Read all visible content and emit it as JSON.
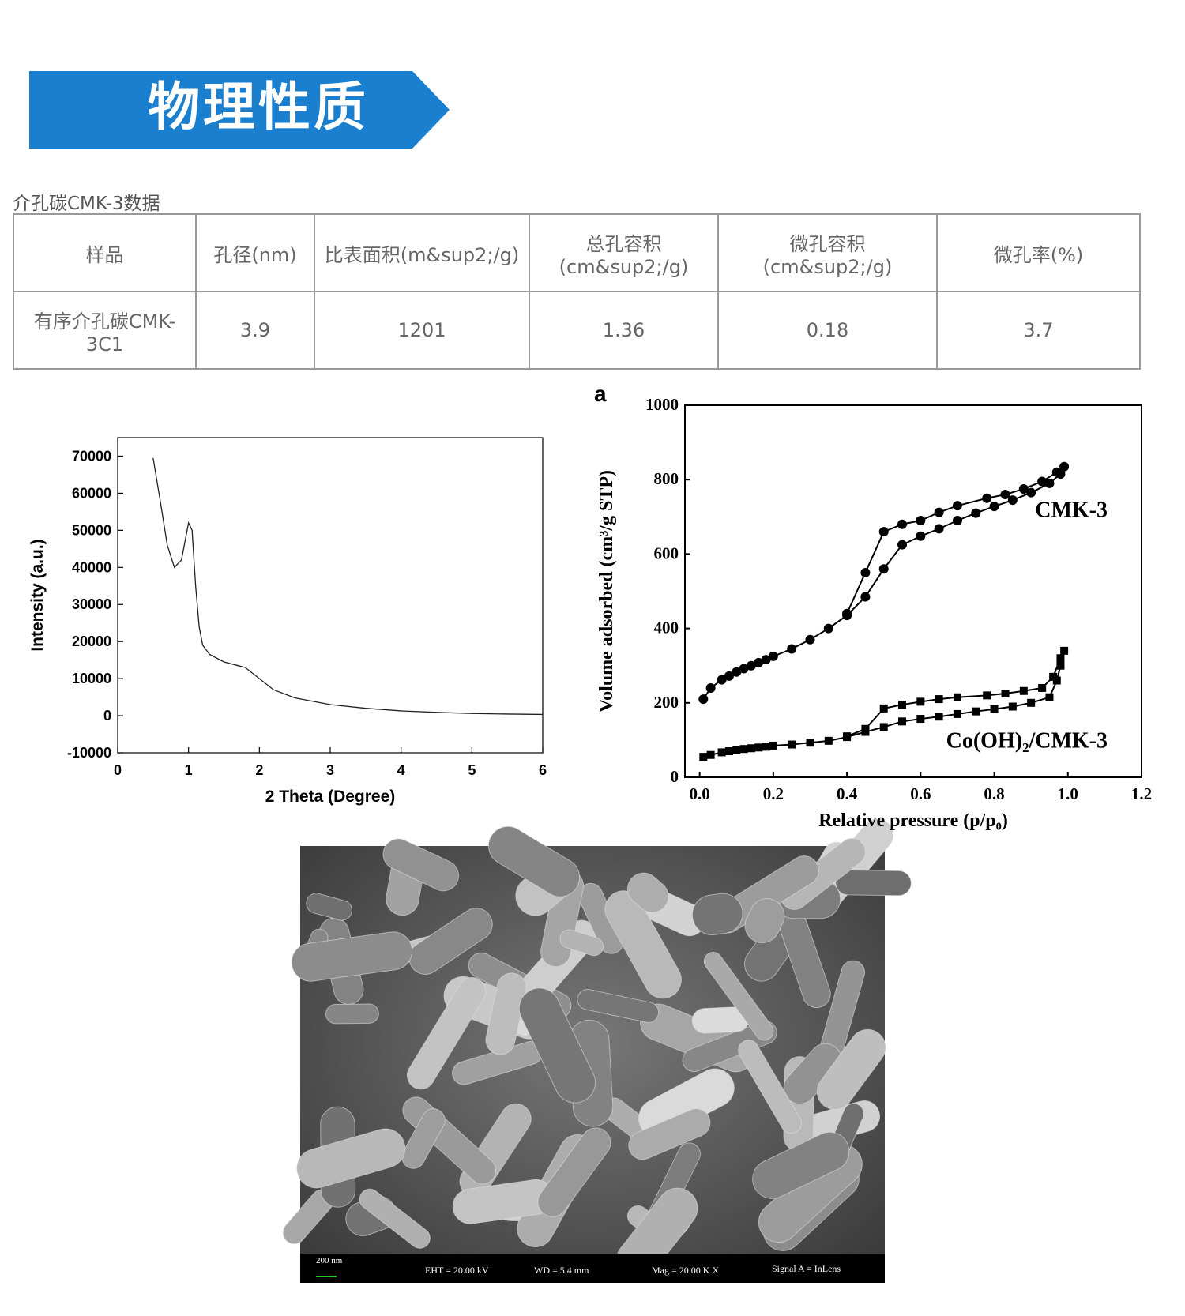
{
  "header": {
    "title": "物理性质"
  },
  "table": {
    "caption": "介孔碳CMK-3数据",
    "rows": [
      [
        "样品",
        "孔径(nm)",
        "比表面积(m&sup2;/g)",
        "总孔容积\n(cm&sup2;/g)",
        "微孔容积\n(cm&sup2;/g)",
        "微孔率(%)"
      ],
      [
        "有序介孔碳CMK-3C1",
        "3.9",
        "1201",
        "1.36",
        "0.18",
        "3.7"
      ]
    ]
  },
  "chart_data": [
    {
      "type": "line",
      "x_label": "2 Theta (Degree)",
      "y_label": "Intensity (a.u.)",
      "xlim": [
        0,
        6
      ],
      "ylim": [
        -10000,
        75000
      ],
      "xticks": [
        0,
        1,
        2,
        3,
        4,
        5,
        6
      ],
      "yticks": [
        -10000,
        0,
        10000,
        20000,
        30000,
        40000,
        50000,
        60000,
        70000
      ],
      "series": [
        {
          "color": "#222222",
          "x": [
            0.5,
            0.6,
            0.7,
            0.8,
            0.9,
            1.0,
            1.05,
            1.1,
            1.15,
            1.2,
            1.3,
            1.5,
            1.7,
            1.8,
            2.0,
            2.2,
            2.5,
            3.0,
            3.5,
            4.0,
            4.5,
            5.0,
            5.5,
            6.0
          ],
          "values": [
            69500,
            58000,
            46000,
            40000,
            42000,
            52000,
            50000,
            35000,
            24000,
            19000,
            16500,
            14500,
            13500,
            13000,
            10000,
            7000,
            4800,
            3000,
            2000,
            1300,
            900,
            600,
            450,
            350
          ]
        }
      ]
    },
    {
      "type": "scatter",
      "panel": "a",
      "x_label": "Relative pressure (p/p₀)",
      "y_label": "Volume adsorbed (cm³/g STP)",
      "xlim": [
        -0.04,
        1.2
      ],
      "ylim": [
        0,
        1000
      ],
      "xticks": [
        {
          "value": 0,
          "label": "0.0"
        },
        0.2,
        0.4,
        0.6,
        0.8,
        {
          "value": 1,
          "label": "1.0"
        },
        1.2
      ],
      "yticks": [
        0,
        200,
        400,
        600,
        800,
        1000
      ],
      "series": [
        {
          "name": "CMK-3",
          "color": "#000000",
          "marker": "circle",
          "x": [
            0.01,
            0.03,
            0.06,
            0.08,
            0.1,
            0.12,
            0.14,
            0.16,
            0.18,
            0.2,
            0.25,
            0.3,
            0.35,
            0.4,
            0.45,
            0.5,
            0.55,
            0.6,
            0.65,
            0.7,
            0.75,
            0.8,
            0.85,
            0.9,
            0.95,
            0.98,
            0.99,
            0.97,
            0.93,
            0.88,
            0.83,
            0.78,
            0.7,
            0.65,
            0.6,
            0.55,
            0.5,
            0.45,
            0.4
          ],
          "values": [
            210,
            240,
            262,
            272,
            283,
            292,
            300,
            308,
            316,
            325,
            345,
            370,
            400,
            435,
            485,
            560,
            625,
            648,
            668,
            690,
            710,
            728,
            745,
            765,
            790,
            815,
            835,
            820,
            795,
            775,
            760,
            750,
            730,
            712,
            690,
            680,
            660,
            550,
            440
          ]
        },
        {
          "name": "Co(OH)₂/CMK-3",
          "color": "#000000",
          "marker": "square",
          "x": [
            0.01,
            0.03,
            0.06,
            0.08,
            0.1,
            0.12,
            0.14,
            0.16,
            0.18,
            0.2,
            0.25,
            0.3,
            0.35,
            0.4,
            0.45,
            0.5,
            0.55,
            0.6,
            0.65,
            0.7,
            0.75,
            0.8,
            0.85,
            0.9,
            0.95,
            0.97,
            0.98,
            0.99,
            0.98,
            0.96,
            0.93,
            0.88,
            0.83,
            0.78,
            0.7,
            0.65,
            0.6,
            0.55,
            0.5,
            0.45,
            0.4
          ],
          "values": [
            55,
            60,
            67,
            70,
            73,
            76,
            78,
            80,
            82,
            85,
            88,
            93,
            98,
            108,
            122,
            135,
            150,
            157,
            163,
            170,
            177,
            183,
            190,
            200,
            215,
            260,
            300,
            340,
            320,
            270,
            240,
            232,
            225,
            220,
            215,
            210,
            203,
            195,
            185,
            130,
            110
          ]
        }
      ]
    }
  ],
  "sem_image": {
    "scale": "200 nm",
    "eht": "EHT = 20.00 kV",
    "wd": "WD =  5.4 mm",
    "mag": "Mag =  20.00 K X",
    "signal": "Signal A = InLens"
  }
}
